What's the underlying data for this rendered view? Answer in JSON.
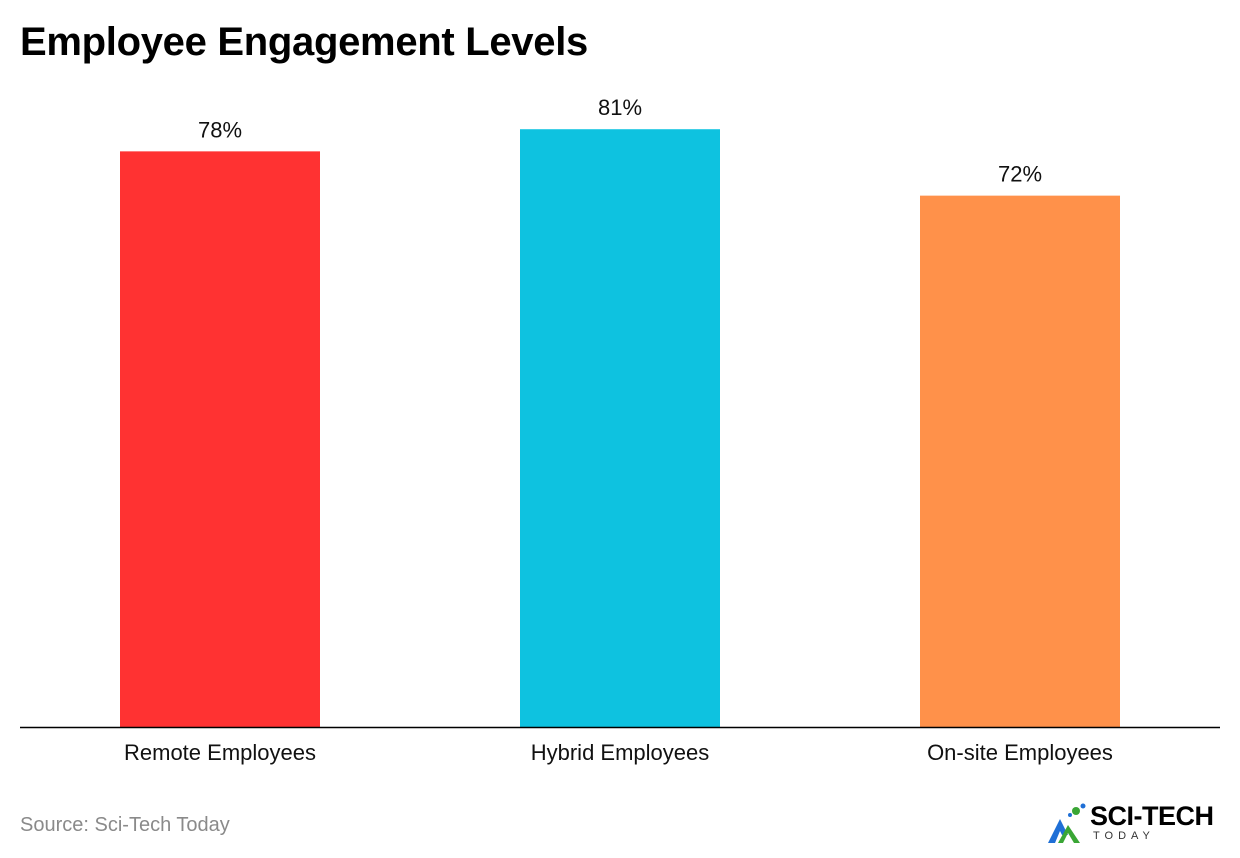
{
  "chart_data": {
    "type": "bar",
    "title": "Employee Engagement Levels",
    "categories": [
      "Remote Employees",
      "Hybrid Employees",
      "On-site Employees"
    ],
    "values": [
      78,
      81,
      72
    ],
    "value_labels": [
      "78%",
      "81%",
      "72%"
    ],
    "colors": [
      "#ff3232",
      "#0ec2e0",
      "#ff914a"
    ],
    "xlabel": "",
    "ylabel": "",
    "ylim": [
      0,
      100
    ],
    "grid": false,
    "legend": "none"
  },
  "source": {
    "label": "Source:",
    "text": "Sci-Tech Today"
  },
  "logo": {
    "name": "SCI-TECH",
    "sub": "TODAY"
  },
  "colors": {
    "axis": "#000000",
    "logo_blue": "#1f6fd6",
    "logo_green": "#3aa635",
    "source_text": "#8a8a8a"
  }
}
